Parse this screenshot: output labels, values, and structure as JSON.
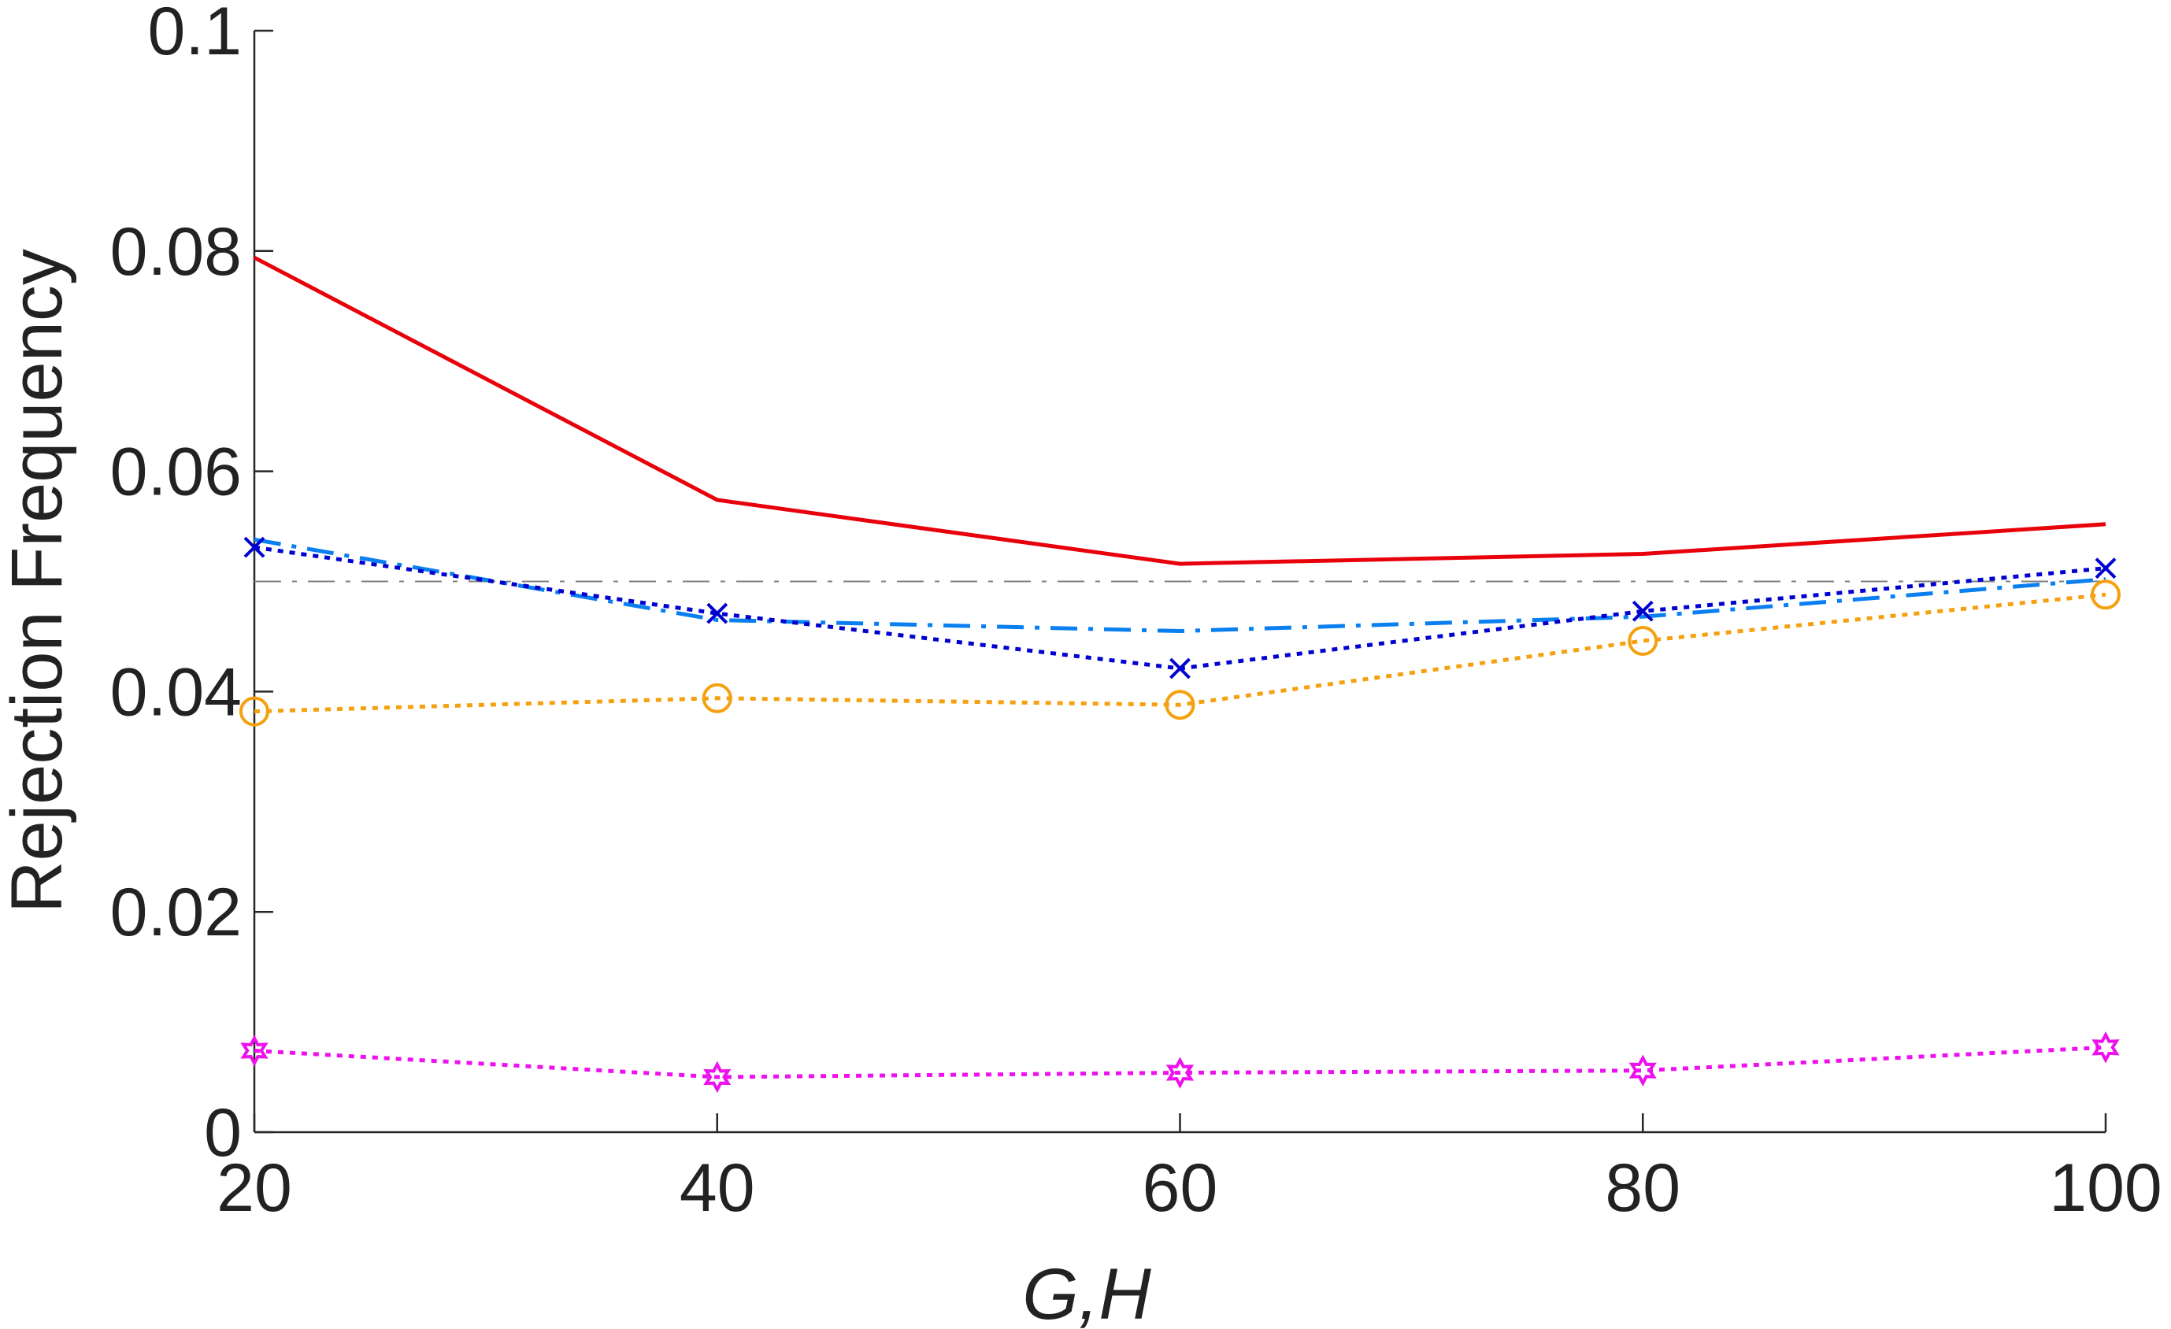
{
  "chart_data": {
    "type": "line",
    "xlabel": "G,H",
    "ylabel": "Rejection Frequency",
    "x": [
      20,
      40,
      60,
      80,
      100
    ],
    "xlim": [
      20,
      100
    ],
    "xticks": [
      20,
      40,
      60,
      80,
      100
    ],
    "ylim": [
      0,
      0.1
    ],
    "yticks": [
      0,
      0.02,
      0.04,
      0.06,
      0.08,
      0.1
    ],
    "grid": false,
    "reference_line": {
      "value": 0.05,
      "color": "#7f7f7f",
      "linestyle": "dashdot"
    },
    "series": [
      {
        "color": "#e8000b",
        "linestyle": "solid",
        "marker": "none",
        "values": [
          0.0794,
          0.0574,
          0.0516,
          0.0525,
          0.0552
        ]
      },
      {
        "color": "#0a7ff0",
        "linestyle": "dashdot",
        "marker": "none",
        "values": [
          0.0538,
          0.0465,
          0.0455,
          0.0468,
          0.0502
        ]
      },
      {
        "color": "#0000d0",
        "linestyle": "dotted",
        "marker": "x",
        "values": [
          0.0531,
          0.0471,
          0.0421,
          0.0473,
          0.0512
        ]
      },
      {
        "color": "#f5a00f",
        "linestyle": "dotted",
        "marker": "o",
        "values": [
          0.0382,
          0.0394,
          0.0388,
          0.0446,
          0.0488
        ]
      },
      {
        "color": "#ee10ee",
        "linestyle": "dotted",
        "marker": "star",
        "values": [
          0.0074,
          0.005,
          0.0054,
          0.0056,
          0.0077
        ]
      }
    ]
  }
}
